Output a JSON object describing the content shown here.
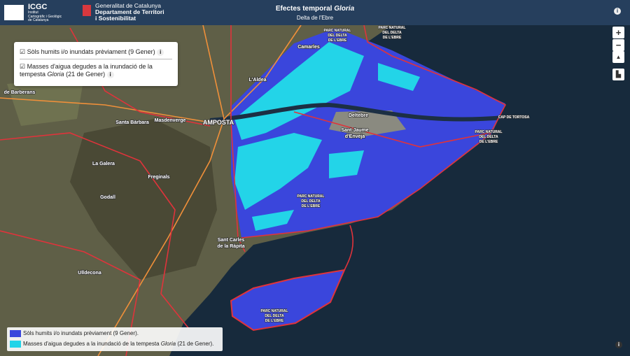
{
  "header": {
    "logo_abbr": "ICGC",
    "logo_line1": "Institut",
    "logo_line2": "Cartogràfic i Geològic",
    "logo_line3": "de Catalunya",
    "gov_line1": "Generalitat de Catalunya",
    "gov_line2": "Departament de Territori",
    "gov_line3": "i Sostenibilitat",
    "title_text": "Efectes temporal",
    "title_emphasis": "Gloria",
    "subtitle": "Delta de l'Ebre",
    "info": "i"
  },
  "layers": {
    "items": [
      {
        "text": "Sòls humits i/o inundats prèviament (9 Gener)",
        "info": "i"
      },
      {
        "text_line1": "Masses d'aigua degudes a la inundació de la",
        "text_line2_before": "tempesta",
        "emphasis": "Gloria",
        "text_line2_after": "(21 de Gener)",
        "info": "i"
      }
    ]
  },
  "map_labels": {
    "places": [
      "Camarles",
      "L'Aldea",
      "Deltebre",
      "Sant Jaume",
      "d'Enveja",
      "AMPOSTA",
      "Santa Bàrbara",
      "Masdenverge",
      "La Galera",
      "Freginals",
      "Godall",
      "Ulldecona",
      "Sant Carles",
      "de la Ràpita",
      "de Barberans",
      "CAP DE TORTOSA"
    ],
    "park_lines": [
      "PARC NATURAL",
      "DEL DELTA",
      "DE L'EBRE"
    ]
  },
  "controls": {
    "zoom_in": "+",
    "zoom_out": "−",
    "north": "▲",
    "info": "i"
  },
  "legend": {
    "items": [
      {
        "color": "#3a46dc",
        "text": "Sòls humits i/o inundats prèviament (9 Gener)."
      },
      {
        "color": "#23d4e8",
        "text_before": "Masses d'aigua degudes a la inundació de la tempesta",
        "emphasis": "Gloria",
        "text_after": "(21 de Gener)."
      }
    ]
  }
}
